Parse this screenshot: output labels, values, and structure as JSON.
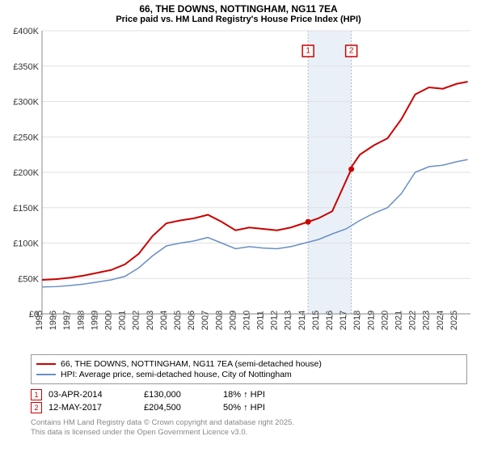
{
  "title_line1": "66, THE DOWNS, NOTTINGHAM, NG11 7EA",
  "title_line2": "Price paid vs. HM Land Registry's House Price Index (HPI)",
  "chart": {
    "type": "line",
    "x_min": 1995,
    "x_max": 2026,
    "y_min": 0,
    "y_max": 400000,
    "y_ticks": [
      0,
      50000,
      100000,
      150000,
      200000,
      250000,
      300000,
      350000,
      400000
    ],
    "y_tick_labels": [
      "£0",
      "£50K",
      "£100K",
      "£150K",
      "£200K",
      "£250K",
      "£300K",
      "£350K",
      "£400K"
    ],
    "x_ticks": [
      1995,
      1996,
      1997,
      1998,
      1999,
      2000,
      2001,
      2002,
      2003,
      2004,
      2005,
      2006,
      2007,
      2008,
      2009,
      2010,
      2011,
      2012,
      2013,
      2014,
      2015,
      2016,
      2017,
      2018,
      2019,
      2020,
      2021,
      2022,
      2023,
      2024,
      2025
    ],
    "grid_color": "#e0e0e0",
    "background_color": "#ffffff",
    "highlight_band": {
      "x_start": 2014.25,
      "x_end": 2017.38,
      "fill": "#eaf0f8"
    },
    "series": [
      {
        "name": "66, THE DOWNS, NOTTINGHAM, NG11 7EA (semi-detached house)",
        "color": "#cc0000",
        "width": 2,
        "points": [
          [
            1995,
            48000
          ],
          [
            1996,
            49000
          ],
          [
            1997,
            51000
          ],
          [
            1998,
            54000
          ],
          [
            1999,
            58000
          ],
          [
            2000,
            62000
          ],
          [
            2001,
            70000
          ],
          [
            2002,
            85000
          ],
          [
            2003,
            110000
          ],
          [
            2004,
            128000
          ],
          [
            2005,
            132000
          ],
          [
            2006,
            135000
          ],
          [
            2007,
            140000
          ],
          [
            2008,
            130000
          ],
          [
            2009,
            118000
          ],
          [
            2010,
            122000
          ],
          [
            2011,
            120000
          ],
          [
            2012,
            118000
          ],
          [
            2013,
            122000
          ],
          [
            2014.25,
            130000
          ],
          [
            2015,
            135000
          ],
          [
            2016,
            145000
          ],
          [
            2017.38,
            204500
          ],
          [
            2017.4,
            208000
          ],
          [
            2018,
            225000
          ],
          [
            2019,
            238000
          ],
          [
            2020,
            248000
          ],
          [
            2021,
            275000
          ],
          [
            2022,
            310000
          ],
          [
            2023,
            320000
          ],
          [
            2024,
            318000
          ],
          [
            2025,
            325000
          ],
          [
            2025.8,
            328000
          ]
        ]
      },
      {
        "name": "HPI: Average price, semi-detached house, City of Nottingham",
        "color": "#6a8fc4",
        "width": 1.5,
        "points": [
          [
            1995,
            38000
          ],
          [
            1996,
            38500
          ],
          [
            1997,
            40000
          ],
          [
            1998,
            42000
          ],
          [
            1999,
            45000
          ],
          [
            2000,
            48000
          ],
          [
            2001,
            53000
          ],
          [
            2002,
            65000
          ],
          [
            2003,
            82000
          ],
          [
            2004,
            96000
          ],
          [
            2005,
            100000
          ],
          [
            2006,
            103000
          ],
          [
            2007,
            108000
          ],
          [
            2008,
            100000
          ],
          [
            2009,
            92000
          ],
          [
            2010,
            95000
          ],
          [
            2011,
            93000
          ],
          [
            2012,
            92000
          ],
          [
            2013,
            95000
          ],
          [
            2014,
            100000
          ],
          [
            2015,
            105000
          ],
          [
            2016,
            113000
          ],
          [
            2017,
            120000
          ],
          [
            2018,
            132000
          ],
          [
            2019,
            142000
          ],
          [
            2020,
            150000
          ],
          [
            2021,
            170000
          ],
          [
            2022,
            200000
          ],
          [
            2023,
            208000
          ],
          [
            2024,
            210000
          ],
          [
            2025,
            215000
          ],
          [
            2025.8,
            218000
          ]
        ]
      }
    ],
    "markers": [
      {
        "label": "1",
        "x": 2014.25,
        "y": 130000,
        "color": "#cc0000"
      },
      {
        "label": "2",
        "x": 2017.38,
        "y": 204500,
        "color": "#cc0000"
      }
    ]
  },
  "legend": {
    "items": [
      {
        "color": "#cc0000",
        "label": "66, THE DOWNS, NOTTINGHAM, NG11 7EA (semi-detached house)"
      },
      {
        "color": "#6a8fc4",
        "label": "HPI: Average price, semi-detached house, City of Nottingham"
      }
    ]
  },
  "transactions": [
    {
      "num": "1",
      "date": "03-APR-2014",
      "price": "£130,000",
      "delta": "18% ↑ HPI",
      "color": "#cc0000"
    },
    {
      "num": "2",
      "date": "12-MAY-2017",
      "price": "£204,500",
      "delta": "50% ↑ HPI",
      "color": "#cc0000"
    }
  ],
  "footer_line1": "Contains HM Land Registry data © Crown copyright and database right 2025.",
  "footer_line2": "This data is licensed under the Open Government Licence v3.0."
}
